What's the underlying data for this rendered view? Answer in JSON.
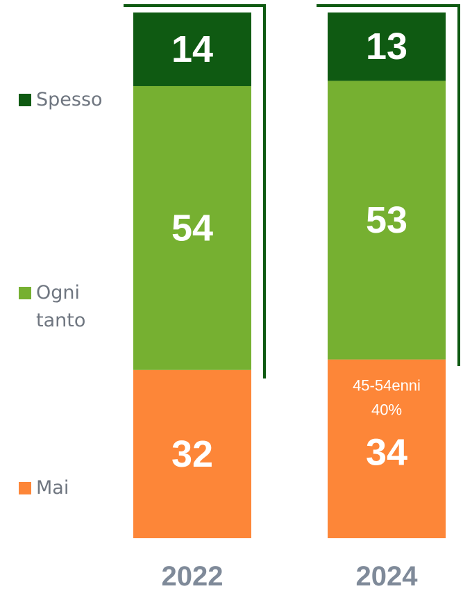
{
  "chart_data": {
    "type": "stacked_bar",
    "categories": [
      "2022",
      "2024"
    ],
    "series": [
      {
        "name": "Spesso",
        "color": "#0f5a12",
        "values": [
          14,
          13
        ]
      },
      {
        "name": "Ogni tanto",
        "color": "#76b031",
        "values": [
          54,
          53
        ]
      },
      {
        "name": "Mai",
        "color": "#fd8638",
        "values": [
          32,
          34
        ]
      }
    ],
    "ylim": [
      0,
      100
    ],
    "annotations": [
      "45-54enni",
      "40%"
    ]
  }
}
